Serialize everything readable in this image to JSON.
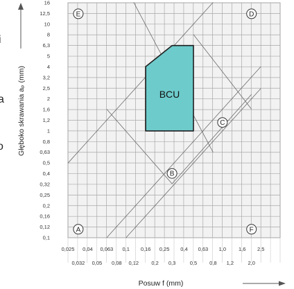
{
  "chart_data": {
    "type": "area",
    "xlabel": "Posuw f (mm)",
    "ylabel": "Głęboko skrawania aₚ (mm)",
    "x_ticks_upper": [
      "0,025",
      "0,04",
      "0,063",
      "0,1",
      "0,16",
      "0,25",
      "0,4",
      "0,63",
      "1,0",
      "1,6",
      "2,5"
    ],
    "x_ticks_lower": [
      "0,032",
      "0,05",
      "0,08",
      "0,12",
      "0,2",
      "0,3",
      "0,5",
      "0,8",
      "1,2",
      "2,0"
    ],
    "y_ticks": [
      "0,1",
      "0,12",
      "0,16",
      "0,2",
      "0,25",
      "0,32",
      "0,4",
      "0,5",
      "0,63",
      "0,8",
      "1",
      "1,2",
      "1,6",
      "2",
      "2,5",
      "3,2",
      "4",
      "5",
      "6,3",
      "8",
      "10",
      "12,5",
      "16"
    ],
    "region": {
      "name": "BCU",
      "color": "#6ecbcb",
      "outline": [
        [
          0.16,
          1.0
        ],
        [
          0.5,
          1.0
        ],
        [
          0.5,
          6.3
        ],
        [
          0.3,
          6.3
        ],
        [
          0.16,
          4.0
        ]
      ]
    },
    "corner_markers": [
      {
        "label": "A",
        "x": 0.032,
        "y": 0.12
      },
      {
        "label": "E",
        "x": 0.032,
        "y": 12.5
      },
      {
        "label": "D",
        "x": 2.0,
        "y": 12.5
      },
      {
        "label": "F",
        "x": 2.0,
        "y": 0.12
      }
    ],
    "zone_markers": [
      {
        "label": "B",
        "x": 0.3,
        "y": 0.4
      },
      {
        "label": "C",
        "x": 1.0,
        "y": 1.2
      }
    ],
    "side_text": [
      "i",
      "a",
      "o"
    ]
  }
}
